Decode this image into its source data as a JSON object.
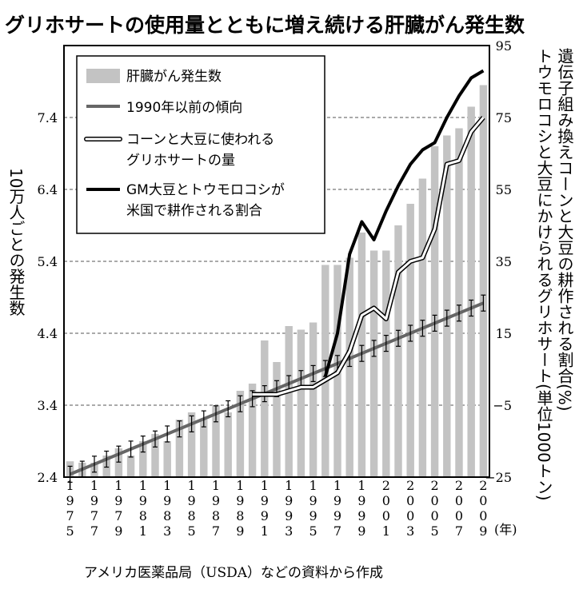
{
  "chart_data": {
    "type": "bar",
    "title": "グリホサートの使用量とともに増え続ける肝臓がん発生数",
    "source": "アメリカ医薬品局（USDA）などの資料から作成",
    "year_unit": "(年)",
    "ylabel_left": "10万人ごとの発生数",
    "ylabel_right_1": "トウモロコシと大豆にかけられるグリホサート",
    "ylabel_right_1_unit": "(単位1000トン)",
    "ylabel_right_2": "遺伝子組み換えコーンと大豆の耕作される割合",
    "ylabel_right_2_unit": "(%)",
    "left_axis": {
      "ticks": [
        "2.4",
        "3.4",
        "4.4",
        "5.4",
        "6.4",
        "7.4"
      ],
      "range": [
        2.4,
        8.4
      ]
    },
    "right_axis": {
      "ticks": [
        "−25",
        "−5",
        "15",
        "35",
        "55",
        "75",
        "95"
      ],
      "range": [
        -25,
        95
      ]
    },
    "x_ticks": [
      "1975",
      "1977",
      "1979",
      "1981",
      "1983",
      "1985",
      "1987",
      "1989",
      "1991",
      "1993",
      "1995",
      "1997",
      "1999",
      "2001",
      "2003",
      "2005",
      "2007",
      "2009"
    ],
    "legend": [
      {
        "name": "肝臓がん発生数",
        "kind": "bar"
      },
      {
        "name": "1990年以前の傾向",
        "kind": "gray-line"
      },
      {
        "name": "コーンと大豆に使われる\nグリホサートの量",
        "kind": "white-line"
      },
      {
        "name": "GM大豆とトウモロコシが\n米国で耕作される割合",
        "kind": "black-line"
      }
    ],
    "years": [
      1975,
      1976,
      1977,
      1978,
      1979,
      1980,
      1981,
      1982,
      1983,
      1984,
      1985,
      1986,
      1987,
      1988,
      1989,
      1990,
      1991,
      1992,
      1993,
      1994,
      1995,
      1996,
      1997,
      1998,
      1999,
      2000,
      2001,
      2002,
      2003,
      2004,
      2005,
      2006,
      2007,
      2008,
      2009
    ],
    "series": [
      {
        "name": "肝臓がん発生数",
        "axis": "left",
        "values": [
          2.62,
          2.6,
          2.6,
          2.7,
          2.8,
          2.7,
          2.9,
          3.0,
          2.9,
          3.2,
          3.3,
          3.2,
          3.4,
          3.3,
          3.6,
          3.7,
          4.3,
          4.0,
          4.5,
          4.45,
          4.55,
          5.35,
          5.35,
          5.45,
          5.8,
          5.55,
          5.55,
          5.9,
          6.2,
          6.55,
          7.0,
          7.15,
          7.25,
          7.55,
          7.85
        ]
      },
      {
        "name": "1990年以前の傾向",
        "axis": "left",
        "values": [
          2.44,
          2.51,
          2.58,
          2.65,
          2.72,
          2.79,
          2.86,
          2.93,
          3.0,
          3.07,
          3.14,
          3.21,
          3.28,
          3.35,
          3.42,
          3.49,
          3.56,
          3.63,
          3.7,
          3.77,
          3.84,
          3.91,
          3.98,
          4.05,
          4.12,
          4.19,
          4.26,
          4.33,
          4.4,
          4.47,
          4.54,
          4.61,
          4.68,
          4.75,
          4.82
        ]
      },
      {
        "name": "コーンと大豆に使われるグリホサートの量",
        "axis": "right",
        "years": [
          1990,
          1991,
          1992,
          1993,
          1994,
          1995,
          1996,
          1997,
          1998,
          1999,
          2000,
          2001,
          2002,
          2003,
          2004,
          2005,
          2006,
          2007,
          2008,
          2009
        ],
        "values": [
          -2,
          -2,
          -2,
          -1,
          0,
          0,
          2,
          4,
          10,
          20,
          22,
          19,
          32,
          35,
          36,
          44,
          62,
          63,
          71,
          75
        ]
      },
      {
        "name": "GM大豆とトウモロコシが米国で耕作される割合",
        "axis": "right",
        "years": [
          1996,
          1997,
          1998,
          1999,
          2000,
          2001,
          2002,
          2003,
          2004,
          2005,
          2006,
          2007,
          2008,
          2009
        ],
        "values": [
          3,
          15,
          37,
          46,
          41,
          49,
          56,
          62,
          66,
          68,
          75,
          81,
          86,
          88
        ]
      }
    ]
  }
}
